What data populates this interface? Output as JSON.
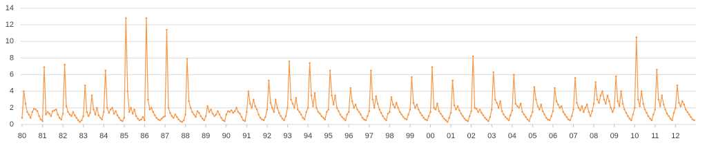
{
  "chart_data": {
    "type": "line",
    "color": "#f79646",
    "ylim": [
      0,
      14
    ],
    "yticks": [
      0,
      2,
      4,
      6,
      8,
      10,
      12,
      14
    ],
    "grid": true,
    "markers": true,
    "categories": [
      "80",
      null,
      null,
      null,
      null,
      null,
      null,
      null,
      null,
      null,
      null,
      null,
      "81",
      null,
      null,
      null,
      null,
      null,
      null,
      null,
      null,
      null,
      null,
      null,
      "82",
      null,
      null,
      null,
      null,
      null,
      null,
      null,
      null,
      null,
      null,
      null,
      "83",
      null,
      null,
      null,
      null,
      null,
      null,
      null,
      null,
      null,
      null,
      null,
      "84",
      null,
      null,
      null,
      null,
      null,
      null,
      null,
      null,
      null,
      null,
      null,
      "85",
      null,
      null,
      null,
      null,
      null,
      null,
      null,
      null,
      null,
      null,
      null,
      "86",
      null,
      null,
      null,
      null,
      null,
      null,
      null,
      null,
      null,
      null,
      null,
      "87",
      null,
      null,
      null,
      null,
      null,
      null,
      null,
      null,
      null,
      null,
      null,
      "88",
      null,
      null,
      null,
      null,
      null,
      null,
      null,
      null,
      null,
      null,
      null,
      "89",
      null,
      null,
      null,
      null,
      null,
      null,
      null,
      null,
      null,
      null,
      null,
      "90",
      null,
      null,
      null,
      null,
      null,
      null,
      null,
      null,
      null,
      null,
      null,
      "91",
      null,
      null,
      null,
      null,
      null,
      null,
      null,
      null,
      null,
      null,
      null,
      "92",
      null,
      null,
      null,
      null,
      null,
      null,
      null,
      null,
      null,
      null,
      null,
      "93",
      null,
      null,
      null,
      null,
      null,
      null,
      null,
      null,
      null,
      null,
      null,
      "94",
      null,
      null,
      null,
      null,
      null,
      null,
      null,
      null,
      null,
      null,
      null,
      "95",
      null,
      null,
      null,
      null,
      null,
      null,
      null,
      null,
      null,
      null,
      null,
      "96",
      null,
      null,
      null,
      null,
      null,
      null,
      null,
      null,
      null,
      null,
      null,
      "97",
      null,
      null,
      null,
      null,
      null,
      null,
      null,
      null,
      null,
      null,
      null,
      "98",
      null,
      null,
      null,
      null,
      null,
      null,
      null,
      null,
      null,
      null,
      null,
      "99",
      null,
      null,
      null,
      null,
      null,
      null,
      null,
      null,
      null,
      null,
      null,
      "00",
      null,
      null,
      null,
      null,
      null,
      null,
      null,
      null,
      null,
      null,
      null,
      "01",
      null,
      null,
      null,
      null,
      null,
      null,
      null,
      null,
      null,
      null,
      null,
      "02",
      null,
      null,
      null,
      null,
      null,
      null,
      null,
      null,
      null,
      null,
      null,
      "03",
      null,
      null,
      null,
      null,
      null,
      null,
      null,
      null,
      null,
      null,
      null,
      "04",
      null,
      null,
      null,
      null,
      null,
      null,
      null,
      null,
      null,
      null,
      null,
      "05",
      null,
      null,
      null,
      null,
      null,
      null,
      null,
      null,
      null,
      null,
      null,
      "06",
      null,
      null,
      null,
      null,
      null,
      null,
      null,
      null,
      null,
      null,
      null,
      "07",
      null,
      null,
      null,
      null,
      null,
      null,
      null,
      null,
      null,
      null,
      null,
      "08",
      null,
      null,
      null,
      null,
      null,
      null,
      null,
      null,
      null,
      null,
      null,
      "09",
      null,
      null,
      null,
      null,
      null,
      null,
      null,
      null,
      null,
      null,
      null,
      "10",
      null,
      null,
      null,
      null,
      null,
      null,
      null,
      null,
      null,
      null,
      null,
      "11",
      null,
      null,
      null,
      null,
      null,
      null,
      null,
      null,
      null,
      null,
      null,
      "12",
      null,
      null,
      null,
      null,
      null,
      null,
      null,
      null,
      null,
      null,
      null
    ],
    "values": [
      0.8,
      4.0,
      2.5,
      1.5,
      1.2,
      0.8,
      1.5,
      1.9,
      1.8,
      1.6,
      1.0,
      0.6,
      0.4,
      6.9,
      1.2,
      1.5,
      1.3,
      1.0,
      1.6,
      1.7,
      1.8,
      1.2,
      0.8,
      0.6,
      1.3,
      7.2,
      2.2,
      1.5,
      1.2,
      1.0,
      1.5,
      1.1,
      0.8,
      0.5,
      0.3,
      0.5,
      1.0,
      4.7,
      1.5,
      1.0,
      1.4,
      3.5,
      1.8,
      1.2,
      2.0,
      1.1,
      0.8,
      0.6,
      1.5,
      6.5,
      2.0,
      1.4,
      1.8,
      2.0,
      1.3,
      1.6,
      1.1,
      0.8,
      0.5,
      0.4,
      0.8,
      12.8,
      4.0,
      1.5,
      2.0,
      1.3,
      1.8,
      1.0,
      0.7,
      0.5,
      0.6,
      0.9,
      0.5,
      12.8,
      3.0,
      1.8,
      2.0,
      1.5,
      1.1,
      0.8,
      0.6,
      0.5,
      0.7,
      0.9,
      1.0,
      11.4,
      2.0,
      1.4,
      1.0,
      0.8,
      1.2,
      0.9,
      0.6,
      0.4,
      0.3,
      0.5,
      1.2,
      7.9,
      2.8,
      2.0,
      1.5,
      1.2,
      0.9,
      1.6,
      1.4,
      1.0,
      0.7,
      0.5,
      1.0,
      2.2,
      1.5,
      1.8,
      1.3,
      1.0,
      1.2,
      1.6,
      1.2,
      0.8,
      0.5,
      0.4,
      1.2,
      1.6,
      1.5,
      1.7,
      1.4,
      1.6,
      2.0,
      1.5,
      1.3,
      0.9,
      0.5,
      0.4,
      1.5,
      4.0,
      2.5,
      2.0,
      3.0,
      2.2,
      1.8,
      1.2,
      0.8,
      0.6,
      0.5,
      0.9,
      1.8,
      5.3,
      2.6,
      2.0,
      1.5,
      3.0,
      2.0,
      1.4,
      1.0,
      0.7,
      0.5,
      1.0,
      2.0,
      7.6,
      3.0,
      2.5,
      2.0,
      3.2,
      1.8,
      1.5,
      1.2,
      0.8,
      0.6,
      1.5,
      2.0,
      7.4,
      3.5,
      2.2,
      3.8,
      2.0,
      1.5,
      1.3,
      1.0,
      0.8,
      0.6,
      1.5,
      1.8,
      6.5,
      3.5,
      2.4,
      3.5,
      2.0,
      1.6,
      1.2,
      0.9,
      0.7,
      0.5,
      1.2,
      1.5,
      4.4,
      2.8,
      2.0,
      2.4,
      1.8,
      1.5,
      1.2,
      0.8,
      0.6,
      0.5,
      1.0,
      1.6,
      6.5,
      3.0,
      2.0,
      3.4,
      2.5,
      1.8,
      1.4,
      1.0,
      0.7,
      0.5,
      1.3,
      1.5,
      3.3,
      2.4,
      2.0,
      2.6,
      2.0,
      1.5,
      1.2,
      0.9,
      0.7,
      0.6,
      1.2,
      1.8,
      5.7,
      2.6,
      2.0,
      2.4,
      1.8,
      1.4,
      1.1,
      0.8,
      0.6,
      0.5,
      1.0,
      1.5,
      6.9,
      2.0,
      1.8,
      2.5,
      1.6,
      1.3,
      1.0,
      0.7,
      0.5,
      0.3,
      0.8,
      1.4,
      5.3,
      2.3,
      1.8,
      2.2,
      1.7,
      1.3,
      1.0,
      0.7,
      0.5,
      0.4,
      1.0,
      1.6,
      8.2,
      2.0,
      1.9,
      1.5,
      1.8,
      1.4,
      1.1,
      0.8,
      0.6,
      0.4,
      0.9,
      1.8,
      6.3,
      3.0,
      2.6,
      2.0,
      2.8,
      1.6,
      1.2,
      0.9,
      0.7,
      0.5,
      1.1,
      1.7,
      6.0,
      2.5,
      2.2,
      2.0,
      2.5,
      1.5,
      1.2,
      0.9,
      0.6,
      0.4,
      1.0,
      1.5,
      4.5,
      3.0,
      2.2,
      1.8,
      2.4,
      1.6,
      1.2,
      0.8,
      0.6,
      0.5,
      1.0,
      1.6,
      4.4,
      2.8,
      2.4,
      2.0,
      2.2,
      1.5,
      1.2,
      0.9,
      0.6,
      0.5,
      1.0,
      1.8,
      5.6,
      2.6,
      2.0,
      1.7,
      2.2,
      1.5,
      2.0,
      2.4,
      1.5,
      1.0,
      1.6,
      2.5,
      5.1,
      3.0,
      2.6,
      3.5,
      4.0,
      3.0,
      2.5,
      3.5,
      2.8,
      2.0,
      1.5,
      2.0,
      5.8,
      2.8,
      2.2,
      4.0,
      2.5,
      1.8,
      1.4,
      1.0,
      0.7,
      0.5,
      1.2,
      2.0,
      10.5,
      3.0,
      2.2,
      4.0,
      2.5,
      1.8,
      1.4,
      1.0,
      0.7,
      0.5,
      1.2,
      1.8,
      6.6,
      3.0,
      2.2,
      3.5,
      2.4,
      1.8,
      1.3,
      1.0,
      0.7,
      0.5,
      1.4,
      2.0,
      4.7,
      2.6,
      2.2,
      2.8,
      2.4,
      1.8,
      1.5,
      1.2,
      0.9,
      0.6,
      0.5
    ]
  }
}
